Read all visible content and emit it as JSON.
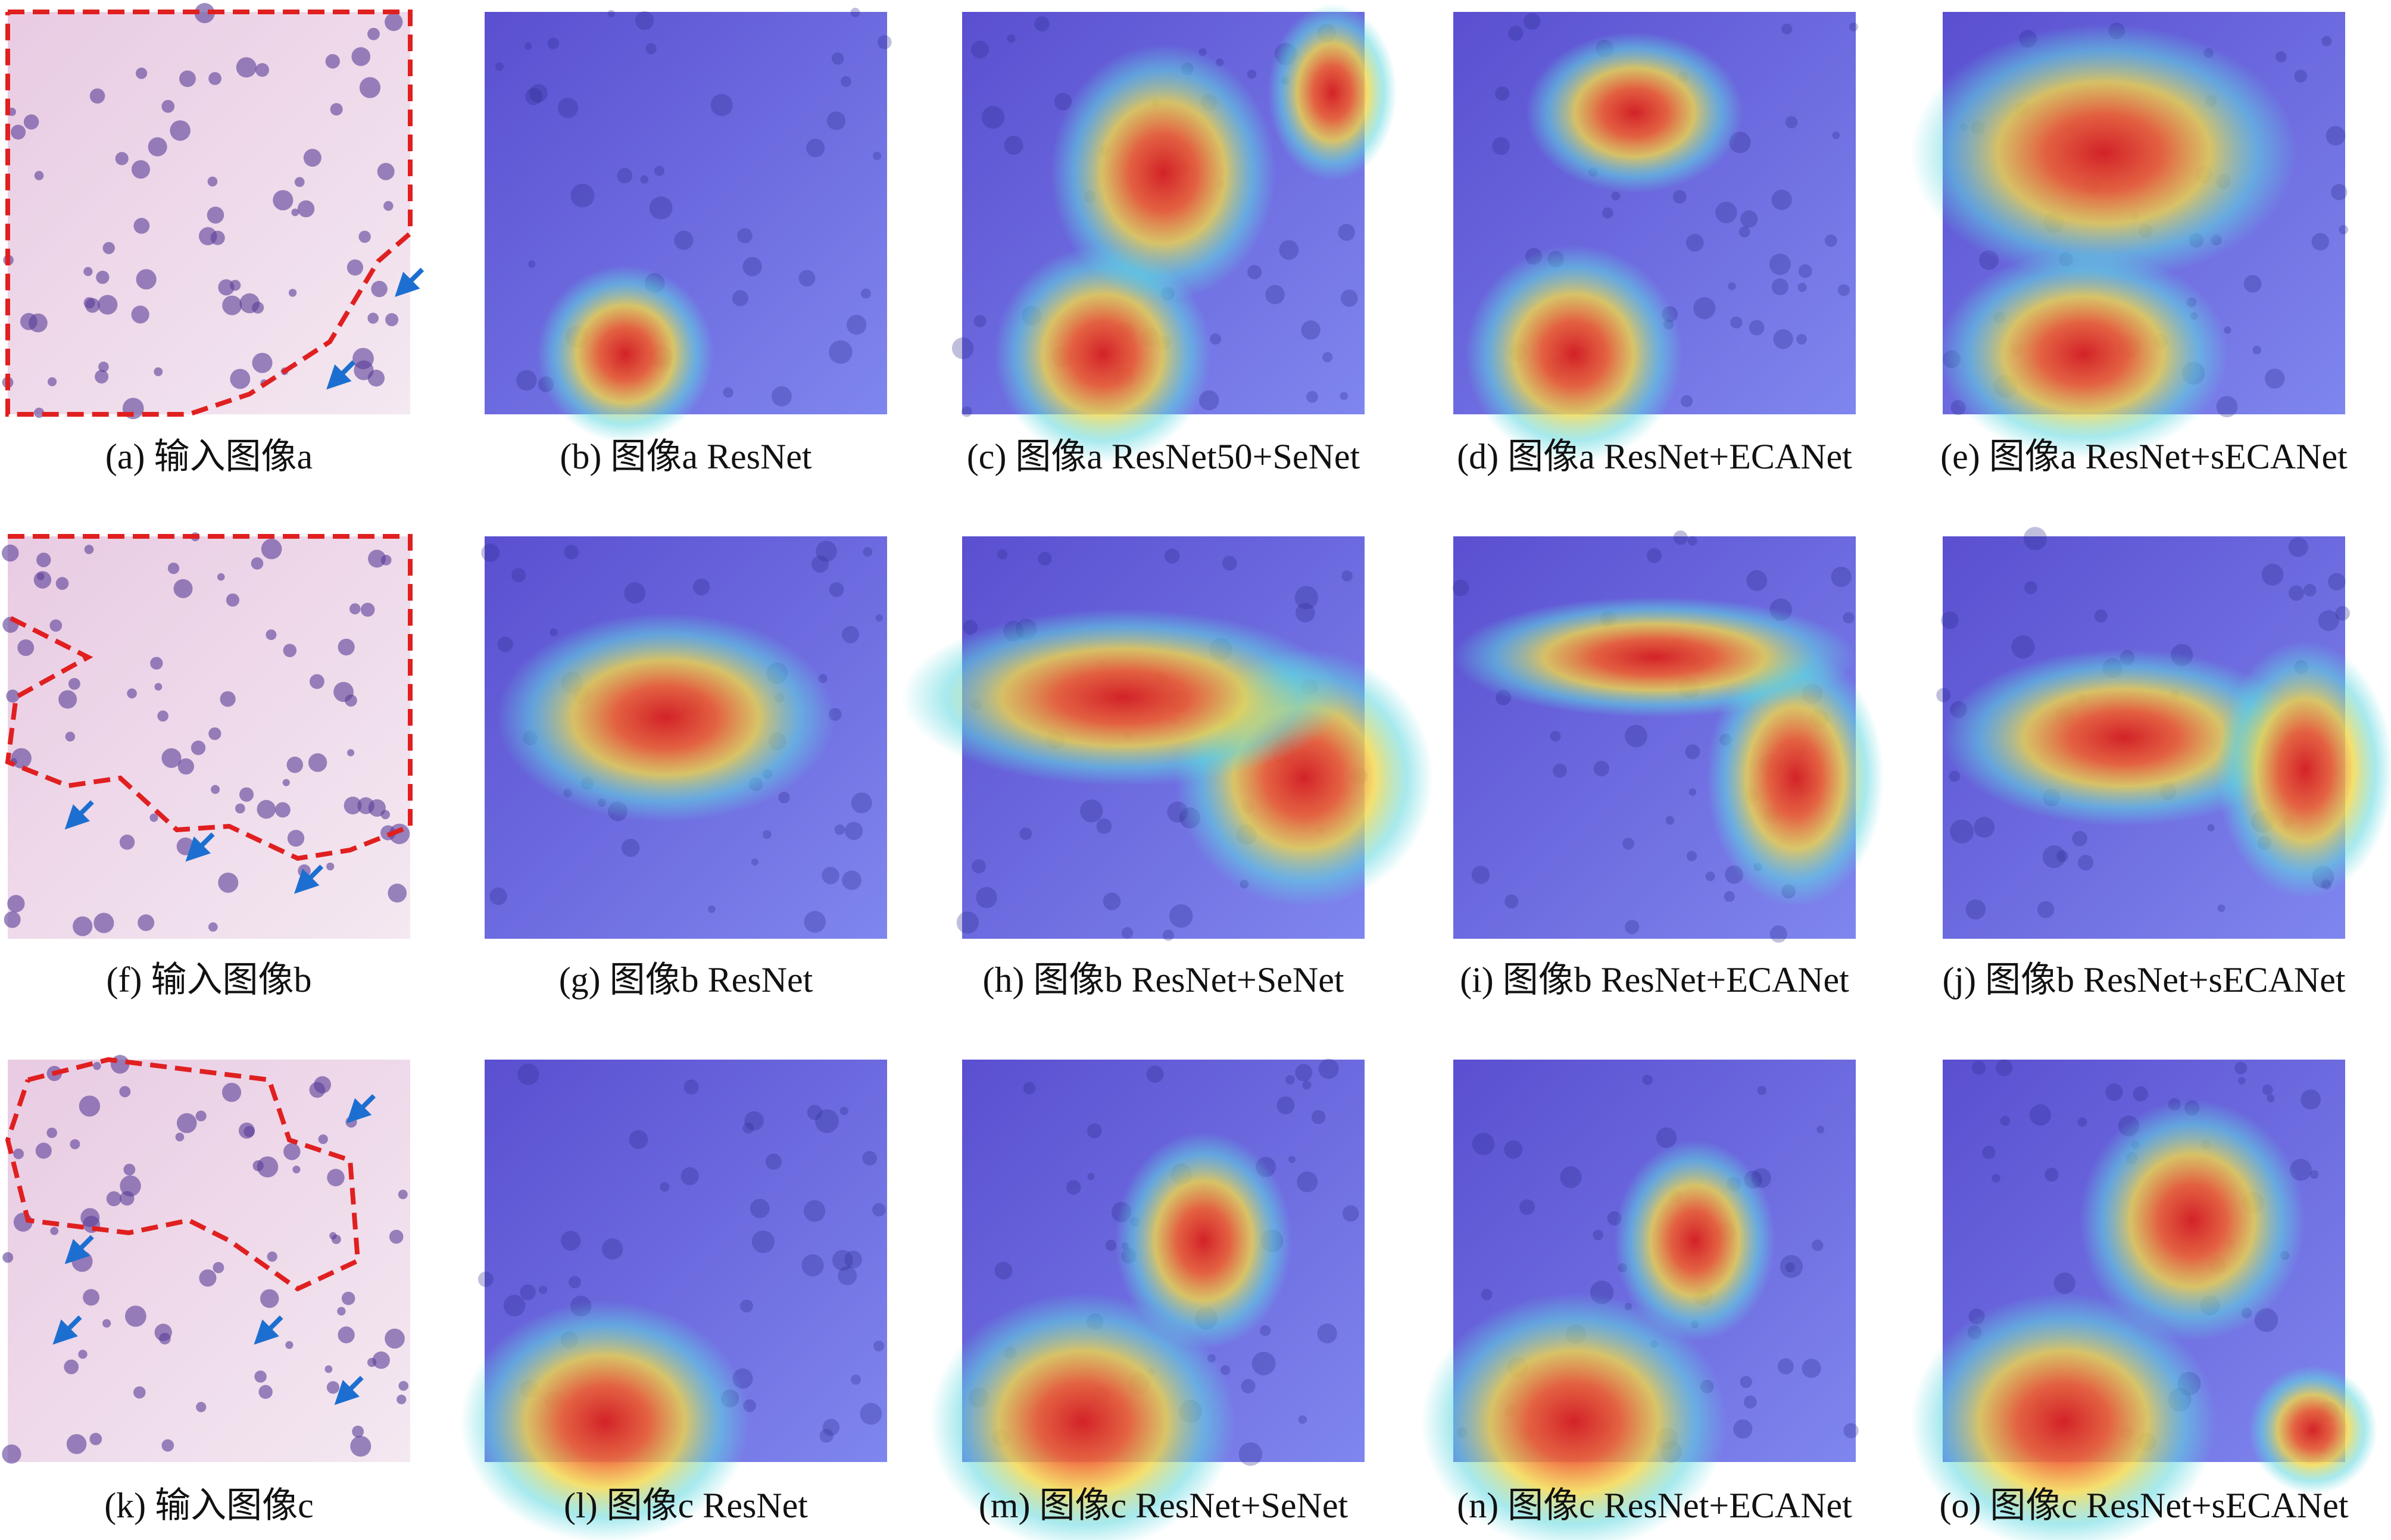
{
  "panels": [
    {
      "caption": "(a) 输入图像a"
    },
    {
      "caption": "(b) 图像a ResNet"
    },
    {
      "caption": "(c) 图像a ResNet50+SeNet"
    },
    {
      "caption": "(d) 图像a ResNet+ECANet"
    },
    {
      "caption": "(e) 图像a ResNet+sECANet"
    },
    {
      "caption": "(f) 输入图像b"
    },
    {
      "caption": "(g) 图像b ResNet"
    },
    {
      "caption": "(h) 图像b ResNet+SeNet"
    },
    {
      "caption": "(i) 图像b ResNet+ECANet"
    },
    {
      "caption": "(j) 图像b ResNet+sECANet"
    },
    {
      "caption": "(k) 输入图像c"
    },
    {
      "caption": "(l) 图像c ResNet"
    },
    {
      "caption": "(m) 图像c ResNet+SeNet"
    },
    {
      "caption": "(n) 图像c ResNet+ECANet"
    },
    {
      "caption": "(o) 图像c ResNet+sECANet"
    }
  ]
}
